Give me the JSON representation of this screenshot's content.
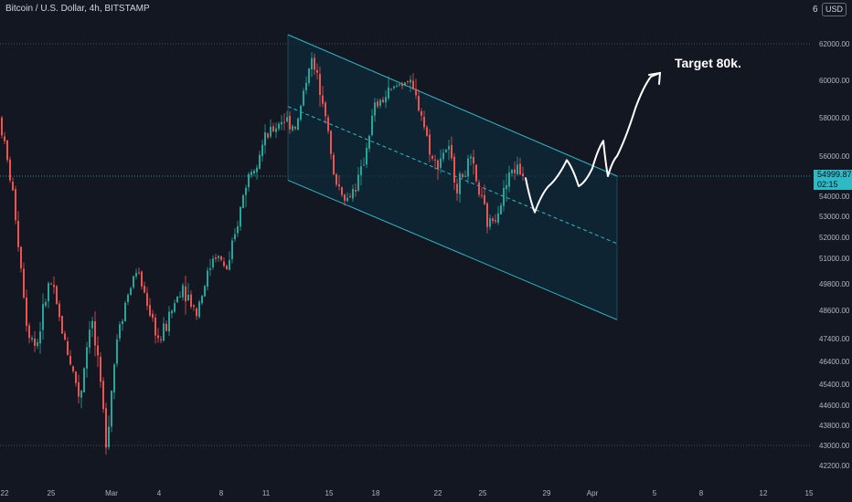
{
  "header": {
    "symbol_line": "Bitcoin / U.S. Dollar, 4h, BITSTAMP",
    "truncated_label": "6",
    "currency_button": "USD"
  },
  "price_tag": {
    "price": "54999.87",
    "countdown": "02:15"
  },
  "annotation": {
    "text": "Target 80k."
  },
  "colors": {
    "background": "#131722",
    "bull": "#26a69a",
    "bear": "#ef5350",
    "channel": "#2fb9c4",
    "channel_fill": "#0d2a3a",
    "text": "#b2b5be"
  },
  "chart_data": {
    "type": "candlestick",
    "title": "",
    "xlabel": "",
    "ylabel": "",
    "ylim": [
      41800,
      63200
    ],
    "grid": false,
    "y_ticks": [
      42200,
      43000,
      43800,
      44600,
      45400,
      46400,
      47400,
      48600,
      49800,
      51000,
      52000,
      53000,
      54000,
      56000,
      58000,
      60000,
      62000
    ],
    "x_ticks": [
      "22",
      "25",
      "Mar",
      "4",
      "8",
      "11",
      "15",
      "18",
      "22",
      "25",
      "29",
      "Apr",
      "5",
      "8",
      "12",
      "15"
    ],
    "horizontal_levels": [
      62000,
      54999.87,
      43000
    ],
    "candle_path": [
      [
        58000,
        0
      ],
      [
        54000,
        15
      ],
      [
        48000,
        30
      ],
      [
        47000,
        40
      ],
      [
        50000,
        55
      ],
      [
        47500,
        70
      ],
      [
        44800,
        88
      ],
      [
        48500,
        100
      ],
      [
        43200,
        117
      ],
      [
        48000,
        130
      ],
      [
        50500,
        150
      ],
      [
        47200,
        175
      ],
      [
        49800,
        200
      ],
      [
        48500,
        215
      ],
      [
        51300,
        235
      ],
      [
        50400,
        250
      ],
      [
        54800,
        270
      ],
      [
        56800,
        290
      ],
      [
        58000,
        310
      ],
      [
        57500,
        325
      ],
      [
        61200,
        340
      ],
      [
        59000,
        355
      ],
      [
        55000,
        365
      ],
      [
        53800,
        380
      ],
      [
        55000,
        395
      ],
      [
        58500,
        410
      ],
      [
        59500,
        430
      ],
      [
        60100,
        445
      ],
      [
        58500,
        460
      ],
      [
        55500,
        475
      ],
      [
        56500,
        490
      ],
      [
        54500,
        500
      ],
      [
        55700,
        515
      ],
      [
        52500,
        535
      ],
      [
        53700,
        548
      ],
      [
        55300,
        560
      ],
      [
        55400,
        565
      ],
      [
        55000,
        575
      ]
    ],
    "channel": {
      "upper": [
        [
          315,
          62500
        ],
        [
          675,
          55000
        ]
      ],
      "lower": [
        [
          315,
          54800
        ],
        [
          675,
          48200
        ]
      ],
      "mid": [
        [
          315,
          58600
        ],
        [
          675,
          51700
        ]
      ]
    },
    "projection_path": [
      [
        575,
        54900
      ],
      [
        585,
        53200
      ],
      [
        600,
        54500
      ],
      [
        620,
        55800
      ],
      [
        633,
        54500
      ],
      [
        648,
        55400
      ],
      [
        660,
        56800
      ],
      [
        665,
        55000
      ],
      [
        675,
        56000
      ],
      [
        695,
        58500
      ],
      [
        712,
        60200
      ]
    ],
    "arrow_tip": [
      722,
      60400
    ]
  }
}
